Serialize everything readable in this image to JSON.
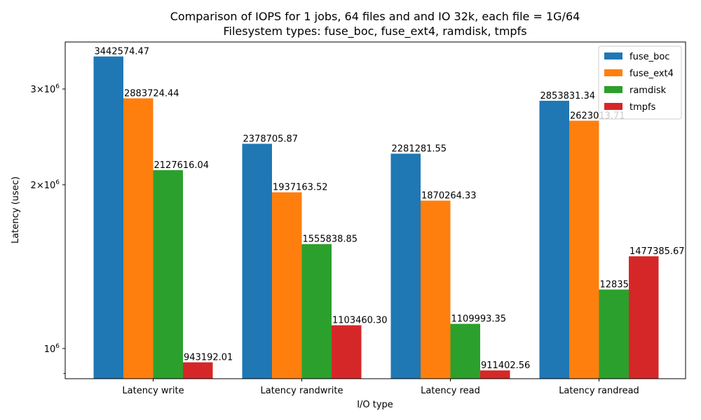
{
  "chart_data": {
    "type": "bar",
    "title_line1": "Comparison of IOPS for 1 jobs, 64 files and  and IO 32k, each file = 1G/64",
    "title_line2": "Filesystem types: fuse_boc, fuse_ext4, ramdisk, tmpfs",
    "xlabel": "I/O type",
    "ylabel": "Latency (usec)",
    "yscale": "log",
    "ylim": [
      880000,
      3660000
    ],
    "yticks": [
      {
        "value": 1000000,
        "label": "10^6"
      },
      {
        "value": 2000000,
        "label": "2×10^6"
      },
      {
        "value": 3000000,
        "label": "3×10^6"
      }
    ],
    "legend_position": "top-right",
    "categories": [
      "Latency write",
      "Latency randwrite",
      "Latency read",
      "Latency randread"
    ],
    "series": [
      {
        "name": "fuse_boc",
        "color": "#1f77b4",
        "values": [
          3442574.47,
          2378705.87,
          2281281.55,
          2853831.34
        ],
        "labels": [
          "3442574.47",
          "2378705.87",
          "2281281.55",
          "2853831.34"
        ]
      },
      {
        "name": "fuse_ext4",
        "color": "#ff7f0e",
        "values": [
          2883724.44,
          1937163.52,
          1870264.33,
          2623013.71
        ],
        "labels": [
          "2883724.44",
          "1937163.52",
          "1870264.33",
          "2623013.71"
        ]
      },
      {
        "name": "ramdisk",
        "color": "#2ca02c",
        "values": [
          2127616.04,
          1555838.85,
          1109993.35,
          1283534.16
        ],
        "labels": [
          "2127616.04",
          "1555838.85",
          "1109993.35",
          "1283534.16"
        ]
      },
      {
        "name": "tmpfs",
        "color": "#d62728",
        "values": [
          943192.01,
          1103460.3,
          911402.56,
          1477385.67
        ],
        "labels": [
          "943192.01",
          "1103460.30",
          "911402.56",
          "1477385.67"
        ]
      }
    ]
  }
}
